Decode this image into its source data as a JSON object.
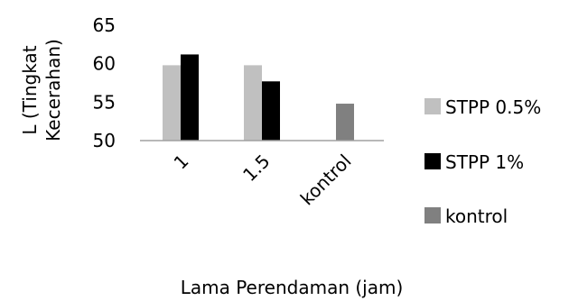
{
  "chart_data": {
    "type": "bar",
    "title": "",
    "xlabel": "Lama Perendaman (jam)",
    "ylabel_lines": [
      "L (Tingkat",
      "Kecerahan)"
    ],
    "ylim": [
      50,
      65
    ],
    "yticks": [
      50,
      55,
      60,
      65
    ],
    "grid": false,
    "legend_position": "right",
    "categories": [
      "1",
      "1.5",
      "kontrol"
    ],
    "series": [
      {
        "name": "STPP 0.5%",
        "color": "#c0c0c0",
        "values": [
          59.8,
          59.8,
          null
        ]
      },
      {
        "name": "STPP 1%",
        "color": "#000000",
        "values": [
          61.2,
          57.7,
          null
        ]
      },
      {
        "name": "kontrol",
        "color": "#808080",
        "values": [
          null,
          null,
          54.8
        ]
      }
    ]
  }
}
